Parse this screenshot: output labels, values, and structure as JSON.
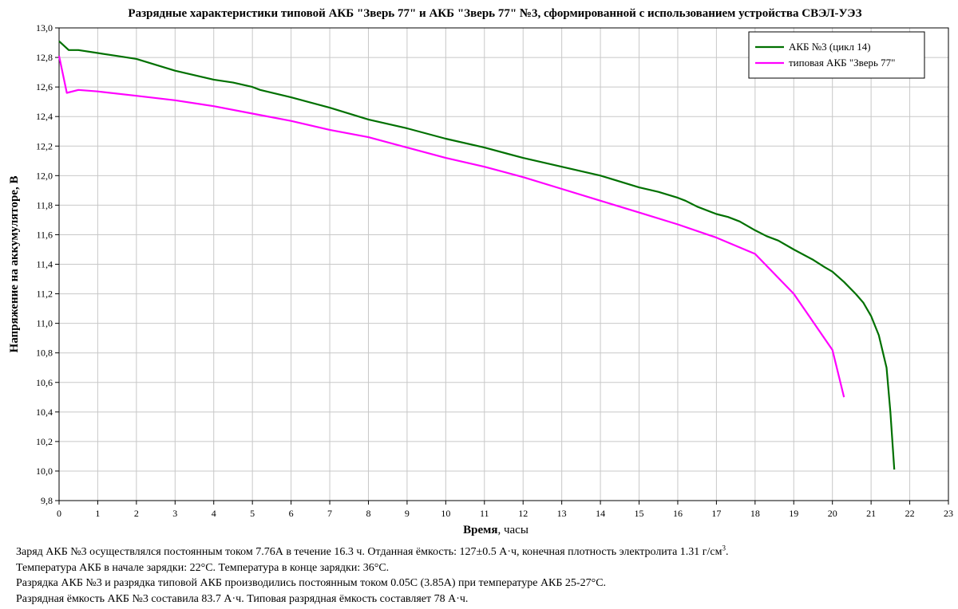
{
  "chart_data": {
    "type": "line",
    "title": "Разрядные характеристики типовой АКБ \"Зверь 77\" и АКБ \"Зверь 77\" №3, сформированной с использованием устройства СВЭЛ-УЭЗ",
    "xlabel_bold": "Время",
    "xlabel_rest": ", часы",
    "ylabel": "Напряжение на аккумуляторе, В",
    "xlim": [
      0,
      23
    ],
    "ylim": [
      9.8,
      13.0
    ],
    "xticks": [
      "0",
      "1",
      "2",
      "3",
      "4",
      "5",
      "6",
      "7",
      "8",
      "9",
      "10",
      "11",
      "12",
      "13",
      "14",
      "15",
      "16",
      "17",
      "18",
      "19",
      "20",
      "21",
      "22",
      "23"
    ],
    "yticks": [
      "9,8",
      "10,0",
      "10,2",
      "10,4",
      "10,6",
      "10,8",
      "11,0",
      "11,2",
      "11,4",
      "11,6",
      "11,8",
      "12,0",
      "12,2",
      "12,4",
      "12,6",
      "12,8",
      "13,0"
    ],
    "grid": true,
    "legend_position": "top-right",
    "series": [
      {
        "name": "АКБ №3 (цикл 14)",
        "color": "#007000",
        "x": [
          0,
          0.25,
          0.5,
          1,
          1.5,
          2,
          2.5,
          3,
          3.5,
          4,
          4.5,
          5,
          5.2,
          6,
          7,
          8,
          9,
          10,
          11,
          12,
          13,
          14,
          15,
          15.5,
          16,
          16.2,
          16.5,
          17,
          17.3,
          17.6,
          18,
          18.3,
          18.6,
          19,
          19.5,
          19.8,
          20,
          20.3,
          20.6,
          20.8,
          21,
          21.2,
          21.4,
          21.5,
          21.6
        ],
        "y": [
          12.91,
          12.85,
          12.85,
          12.83,
          12.81,
          12.79,
          12.75,
          12.71,
          12.68,
          12.65,
          12.63,
          12.6,
          12.58,
          12.53,
          12.46,
          12.38,
          12.32,
          12.25,
          12.19,
          12.12,
          12.06,
          12.0,
          11.92,
          11.89,
          11.85,
          11.83,
          11.79,
          11.74,
          11.72,
          11.69,
          11.63,
          11.59,
          11.56,
          11.5,
          11.43,
          11.38,
          11.35,
          11.28,
          11.2,
          11.14,
          11.05,
          10.92,
          10.7,
          10.4,
          10.01
        ]
      },
      {
        "name": "типовая АКБ \"Зверь 77\"",
        "color": "#ff00ff",
        "x": [
          0,
          0.2,
          0.5,
          1,
          2,
          3,
          4,
          5,
          6,
          7,
          8,
          9,
          10,
          11,
          12,
          13,
          14,
          15,
          16,
          17,
          18,
          19,
          20,
          20.3
        ],
        "y": [
          12.81,
          12.56,
          12.58,
          12.57,
          12.54,
          12.51,
          12.47,
          12.42,
          12.37,
          12.31,
          12.26,
          12.19,
          12.12,
          12.06,
          11.99,
          11.91,
          11.83,
          11.75,
          11.67,
          11.58,
          11.47,
          11.2,
          10.82,
          10.5
        ]
      }
    ]
  },
  "notes": {
    "line1_a": "Заряд АКБ №3 осуществлялся постоянным током 7.76А в течение 16.3 ч. Отданная ёмкость: 127±0.5 А·ч, конечная плотность электролита 1.31 г/см",
    "line1_sup": "3",
    "line1_b": ".",
    "line2": "Температура АКБ в начале зарядки: 22°С. Температура в конце зарядки: 36°С.",
    "line3": "Разрядка АКБ №3 и разрядка типовой АКБ производились постоянным током 0.05С (3.85А) при температуре АКБ 25-27°С.",
    "line4": "Разрядная ёмкость АКБ №3 составила 83.7 А·ч. Типовая разрядная ёмкость составляет 78 А·ч."
  }
}
